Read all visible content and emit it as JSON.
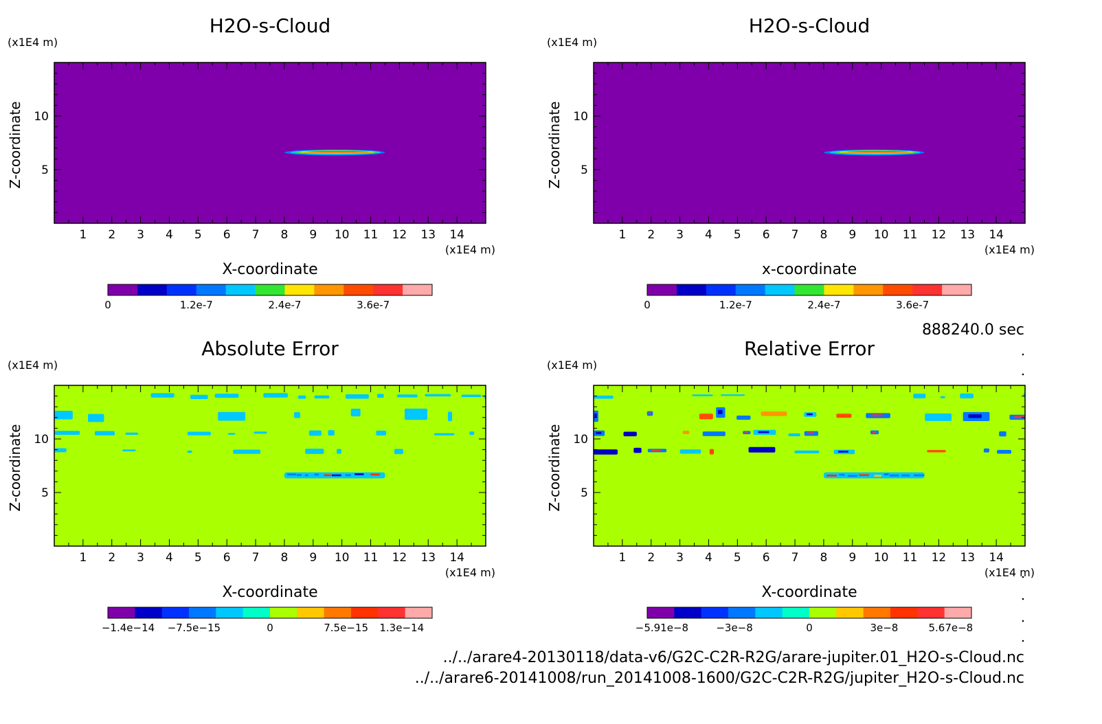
{
  "figure": {
    "time_label": "888240.0 sec",
    "files": [
      "../../arare4-20130118/data-v6/G2C-C2R-R2G/arare-jupiter.01_H2O-s-Cloud.nc",
      "../../arare6-20141008/run_20141008-1600/G2C-C2R-R2G/jupiter_H2O-s-Cloud.nc"
    ]
  },
  "chart_data": [
    {
      "type": "heatmap",
      "title": "H2O-s-Cloud",
      "xlabel": "X-coordinate",
      "ylabel": "Z-coordinate",
      "x_unit": "(x1E4 m)",
      "z_unit": "(x1E4 m)",
      "xlim": [
        0,
        15
      ],
      "ylim": [
        0,
        15
      ],
      "xticks": [
        1,
        2,
        3,
        4,
        5,
        6,
        7,
        8,
        9,
        10,
        11,
        12,
        13,
        14
      ],
      "yticks": [
        5,
        10
      ],
      "background_color": "#7f00aa",
      "colorbar": {
        "colors": [
          "#7f00aa",
          "#0000c8",
          "#0032ff",
          "#0078ff",
          "#00c8ff",
          "#32e632",
          "#ffe600",
          "#ff9600",
          "#ff4b00",
          "#ff3232",
          "#ffaaaa"
        ],
        "ticks": [
          "0",
          "1.2e-7",
          "2.4e-7",
          "3.6e-7"
        ],
        "tick_values": [
          0,
          1.2e-07,
          2.4e-07,
          3.6e-07
        ],
        "range": [
          0,
          4.4e-07
        ]
      },
      "features": [
        {
          "x0": 8.0,
          "x1": 11.5,
          "z_center": 6.6,
          "z_half": 0.22,
          "style": "lens",
          "peak": 4e-07
        }
      ]
    },
    {
      "type": "heatmap",
      "title": "H2O-s-Cloud",
      "xlabel": "x-coordinate",
      "ylabel": "Z-coordinate",
      "x_unit": "(x1E4 m)",
      "z_unit": "(x1E4 m)",
      "xlim": [
        0,
        15
      ],
      "ylim": [
        0,
        15
      ],
      "xticks": [
        1,
        2,
        3,
        4,
        5,
        6,
        7,
        8,
        9,
        10,
        11,
        12,
        13,
        14
      ],
      "yticks": [
        5,
        10
      ],
      "background_color": "#7f00aa",
      "colorbar": {
        "colors": [
          "#7f00aa",
          "#0000c8",
          "#0032ff",
          "#0078ff",
          "#00c8ff",
          "#32e632",
          "#ffe600",
          "#ff9600",
          "#ff4b00",
          "#ff3232",
          "#ffaaaa"
        ],
        "ticks": [
          "0",
          "1.2e-7",
          "2.4e-7",
          "3.6e-7"
        ],
        "tick_values": [
          0,
          1.2e-07,
          2.4e-07,
          3.6e-07
        ],
        "range": [
          0,
          4.4e-07
        ]
      },
      "features": [
        {
          "x0": 8.0,
          "x1": 11.5,
          "z_center": 6.6,
          "z_half": 0.22,
          "style": "lens",
          "peak": 4e-07
        }
      ]
    },
    {
      "type": "heatmap",
      "title": "Absolute Error",
      "xlabel": "X-coordinate",
      "ylabel": "Z-coordinate",
      "x_unit": "(x1E4 m)",
      "z_unit": "(x1E4 m)",
      "xlim": [
        0,
        15
      ],
      "ylim": [
        0,
        15
      ],
      "xticks": [
        1,
        2,
        3,
        4,
        5,
        6,
        7,
        8,
        9,
        10,
        11,
        12,
        13,
        14
      ],
      "yticks": [
        5,
        10
      ],
      "background_color": "#aaff00",
      "colorbar": {
        "colors": [
          "#7f00aa",
          "#0000c8",
          "#0032ff",
          "#0078ff",
          "#00c8ff",
          "#00ffc8",
          "#aaff00",
          "#ffc800",
          "#ff7800",
          "#ff3200",
          "#ff3232",
          "#ffaaaa"
        ],
        "ticks": [
          "−1.4e−14",
          "−7.5e−15",
          "0",
          "7.5e−15",
          "1.3e−14"
        ],
        "tick_values": [
          -1.4e-14,
          -7.5e-15,
          0,
          7.5e-15,
          1.3e-14
        ],
        "range": [
          -1.6e-14,
          1.6e-14
        ]
      },
      "features": [
        {
          "x0": 0,
          "x1": 15,
          "z_center": 14.0,
          "z_half": 0.18,
          "style": "band",
          "color": "#00c8ff",
          "density": 0.55
        },
        {
          "x0": 0,
          "x1": 15,
          "z_center": 12.2,
          "z_half": 0.45,
          "style": "band",
          "color": "#00c8ff",
          "density": 0.6
        },
        {
          "x0": 0,
          "x1": 15,
          "z_center": 10.5,
          "z_half": 0.2,
          "style": "band",
          "color": "#00c8ff",
          "density": 0.5
        },
        {
          "x0": 0,
          "x1": 15,
          "z_center": 8.9,
          "z_half": 0.2,
          "style": "band",
          "color": "#00c8ff",
          "density": 0.55
        },
        {
          "x0": 8.0,
          "x1": 11.5,
          "z_center": 6.6,
          "z_half": 0.28,
          "style": "noisy-lens"
        }
      ]
    },
    {
      "type": "heatmap",
      "title": "Relative Error",
      "xlabel": "X-coordinate",
      "ylabel": "Z-coordinate",
      "x_unit": "(x1E4 m)",
      "z_unit": "(x1E4 m)",
      "xlim": [
        0,
        15
      ],
      "ylim": [
        0,
        15
      ],
      "xticks": [
        1,
        2,
        3,
        4,
        5,
        6,
        7,
        8,
        9,
        10,
        11,
        12,
        13,
        14
      ],
      "yticks": [
        5,
        10
      ],
      "background_color": "#aaff00",
      "colorbar": {
        "colors": [
          "#7f00aa",
          "#0000c8",
          "#0032ff",
          "#0078ff",
          "#00c8ff",
          "#00ffc8",
          "#aaff00",
          "#ffc800",
          "#ff7800",
          "#ff3200",
          "#ff3232",
          "#ffaaaa"
        ],
        "ticks": [
          "−5.91e−8",
          "−3e−8",
          "0",
          "3e−8",
          "5.67e−8"
        ],
        "tick_values": [
          -5.91e-08,
          -3e-08,
          0,
          3e-08,
          5.67e-08
        ],
        "range": [
          -6.5e-08,
          6.5e-08
        ]
      },
      "features": [
        {
          "x0": 0,
          "x1": 15,
          "z_center": 14.0,
          "z_half": 0.18,
          "style": "band",
          "color": "#00c8ff",
          "density": 0.5
        },
        {
          "x0": 0,
          "x1": 15,
          "z_center": 12.2,
          "z_half": 0.45,
          "style": "band-mixed",
          "density": 0.6
        },
        {
          "x0": 0,
          "x1": 15,
          "z_center": 10.5,
          "z_half": 0.2,
          "style": "band-mixed",
          "density": 0.55
        },
        {
          "x0": 0,
          "x1": 15,
          "z_center": 8.9,
          "z_half": 0.2,
          "style": "band-mixed",
          "density": 0.6
        },
        {
          "x0": 8.0,
          "x1": 11.5,
          "z_center": 6.6,
          "z_half": 0.28,
          "style": "noisy-lens"
        }
      ]
    }
  ]
}
